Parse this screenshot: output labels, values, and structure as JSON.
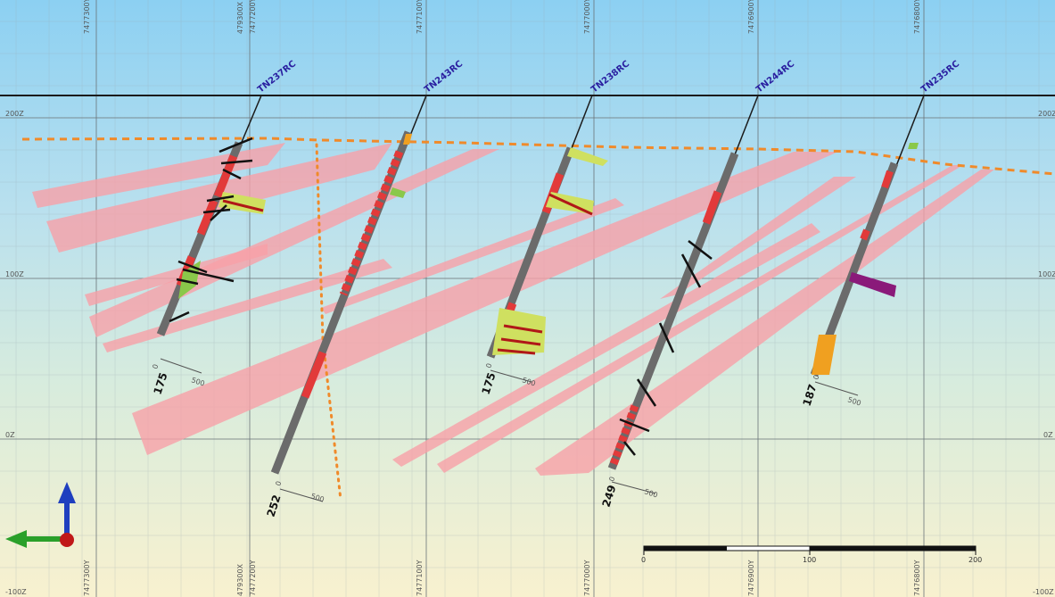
{
  "section": {
    "northing_labels": [
      "7477300Y",
      "7477200Y",
      "7477100Y",
      "7477000Y",
      "7476900Y",
      "7476800Y"
    ],
    "easting_label": "479300X",
    "elevation_labels": [
      "200Z",
      "100Z",
      "0Z",
      "-100Z"
    ],
    "left_elevation_labels": [
      "200Z",
      "100Z",
      "0Z",
      "-100Z"
    ],
    "right_elevation_labels": [
      "200Z",
      "100Z",
      "0Z",
      "-100Z"
    ]
  },
  "drillholes": [
    {
      "name": "TN237RC",
      "depth": "175",
      "axis_start": "0",
      "axis_end": "500"
    },
    {
      "name": "TN243RC",
      "depth": "252",
      "axis_start": "0",
      "axis_end": "500"
    },
    {
      "name": "TN238RC",
      "depth": "175",
      "axis_start": "0",
      "axis_end": "500"
    },
    {
      "name": "TN244RC",
      "depth": "249",
      "axis_start": "0",
      "axis_end": "500"
    },
    {
      "name": "TN235RC",
      "depth": "187",
      "axis_start": "0",
      "axis_end": "500"
    }
  ],
  "scale_bar": {
    "labels": [
      "0",
      "100",
      "200"
    ]
  },
  "colors": {
    "ore_zone": "#f7a0a8",
    "weathering_line": "#f08a2a",
    "fault_line": "#f08a2a",
    "hole_trace": "#1a1a1a",
    "drillhole_label": "#2a1fa0",
    "axis_up": "#1f3fbf",
    "axis_left": "#2aa02a",
    "axis_origin": "#c01818"
  },
  "orientation_icons": [
    "up-arrow",
    "left-arrow",
    "origin-dot"
  ]
}
